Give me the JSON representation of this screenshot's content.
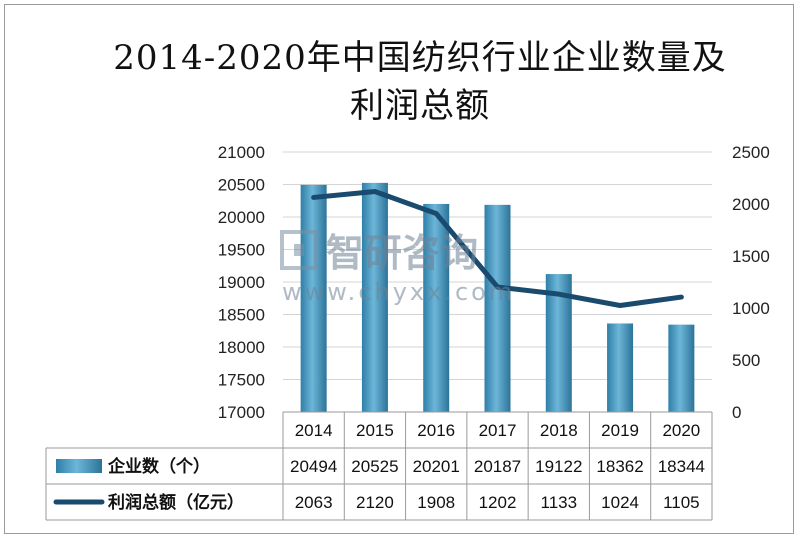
{
  "chart_data": {
    "type": "bar",
    "title": "2014-2020年中国纺织行业企业数量及利润总额",
    "categories": [
      "2014",
      "2015",
      "2016",
      "2017",
      "2018",
      "2019",
      "2020"
    ],
    "series": [
      {
        "name": "企业数（个）",
        "type": "bar",
        "axis": "left",
        "color": "#4a9cc4",
        "values": [
          20494,
          20525,
          20201,
          20187,
          19122,
          18362,
          18344
        ]
      },
      {
        "name": "利润总额（亿元）",
        "type": "line",
        "axis": "right",
        "color": "#1a4a6e",
        "values": [
          2063,
          2120,
          1908,
          1202,
          1133,
          1024,
          1105
        ]
      }
    ],
    "y_left": {
      "min": 17000,
      "max": 21000,
      "step": 500,
      "ticks": [
        "17000",
        "17500",
        "18000",
        "18500",
        "19000",
        "19500",
        "20000",
        "20500",
        "21000"
      ]
    },
    "y_right": {
      "min": 0,
      "max": 2500,
      "step": 500,
      "ticks": [
        "0",
        "500",
        "1000",
        "1500",
        "2000",
        "2500"
      ]
    },
    "grid": true,
    "legend": "data-table"
  },
  "watermark": {
    "brand": "智研咨询",
    "url": "www.chyxx.com"
  }
}
